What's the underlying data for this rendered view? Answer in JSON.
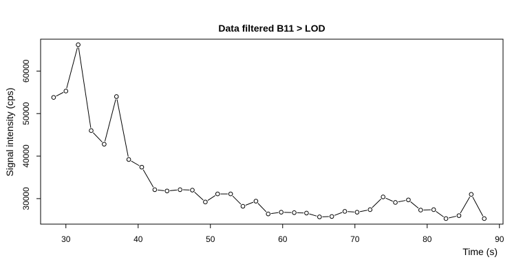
{
  "chart_data": {
    "type": "line",
    "title": "Data filtered B11 > LOD",
    "xlabel": "Time (s)",
    "ylabel": "Signal intensity (cps)",
    "xlim": [
      26.5,
      90.5
    ],
    "ylim": [
      24000,
      67500
    ],
    "xticks": [
      30,
      40,
      50,
      60,
      70,
      80,
      90
    ],
    "yticks": [
      30000,
      40000,
      50000,
      60000
    ],
    "grid": false,
    "series": [
      {
        "x": [
          28.3,
          30.0,
          31.7,
          33.5,
          35.3,
          37.0,
          38.7,
          40.5,
          42.3,
          44.0,
          45.8,
          47.5,
          49.3,
          51.0,
          52.8,
          54.5,
          56.3,
          58.0,
          59.8,
          61.6,
          63.3,
          65.1,
          66.8,
          68.6,
          70.3,
          72.1,
          73.9,
          75.6,
          77.4,
          79.1,
          80.9,
          82.6,
          84.4,
          86.1,
          87.9
        ],
        "y": [
          53800,
          55300,
          66200,
          46000,
          42800,
          54000,
          39200,
          37400,
          32100,
          31800,
          32100,
          32000,
          29200,
          31100,
          31100,
          28200,
          29400,
          26400,
          26800,
          26700,
          26600,
          25700,
          25800,
          27000,
          26800,
          27400,
          30400,
          29100,
          29700,
          27300,
          27400,
          25300,
          26000,
          31000,
          25300
        ]
      }
    ]
  }
}
